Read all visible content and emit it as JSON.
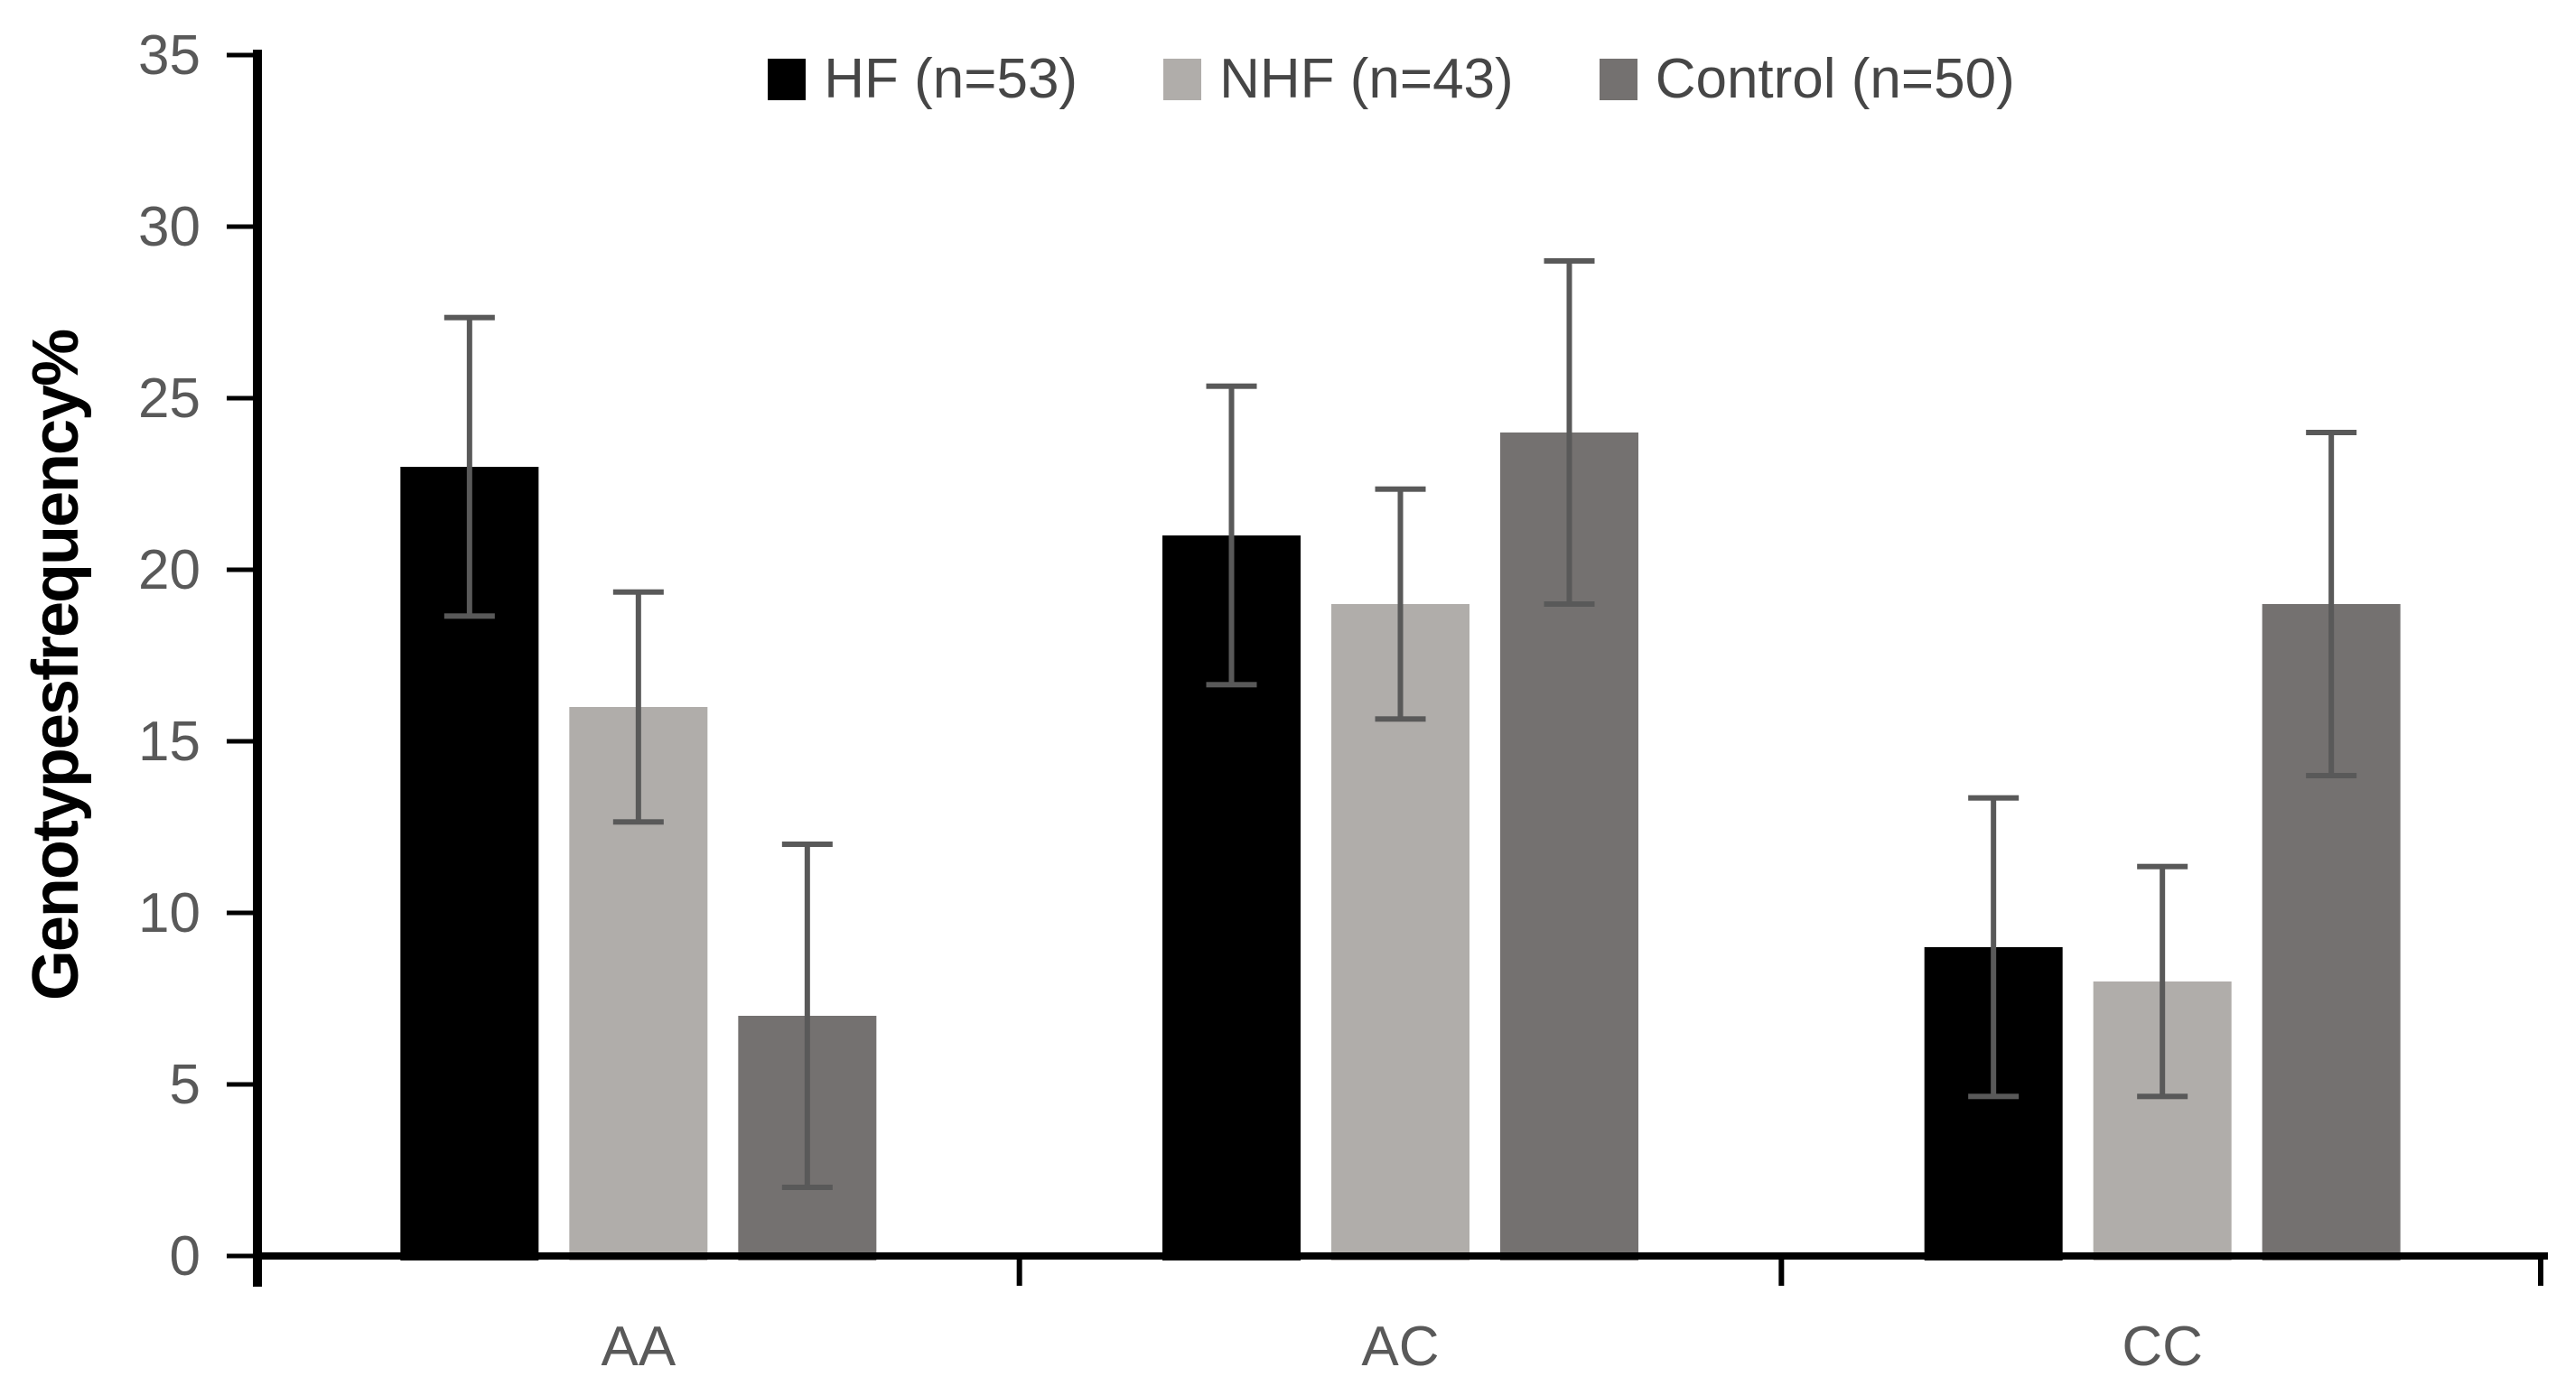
{
  "chart_data": {
    "type": "bar",
    "title": "",
    "categories": [
      "AA",
      "AC",
      "CC"
    ],
    "series": [
      {
        "name": "HF (n=53)",
        "color": "#000000",
        "values": [
          23,
          21,
          9
        ],
        "error": 4.35
      },
      {
        "name": "NHF (n=43)",
        "color": "#b0adaa",
        "values": [
          16,
          19,
          8
        ],
        "error": 3.35
      },
      {
        "name": "Control (n=50)",
        "color": "#747170",
        "values": [
          7,
          24,
          19
        ],
        "error": 5.0
      }
    ],
    "xlabel": "",
    "ylabel": "Genotypesfrequency%",
    "ylim": [
      0,
      35
    ],
    "yticks": [
      0,
      5,
      10,
      15,
      20,
      25,
      30,
      35
    ],
    "grid": false,
    "legend_position": "top-center",
    "error_bar_color": "#595959",
    "axis_color": "#000000",
    "tick_label_color": "#595959",
    "category_label_color": "#595959",
    "legend_text_color": "#464646",
    "background_color": "#ffffff"
  }
}
